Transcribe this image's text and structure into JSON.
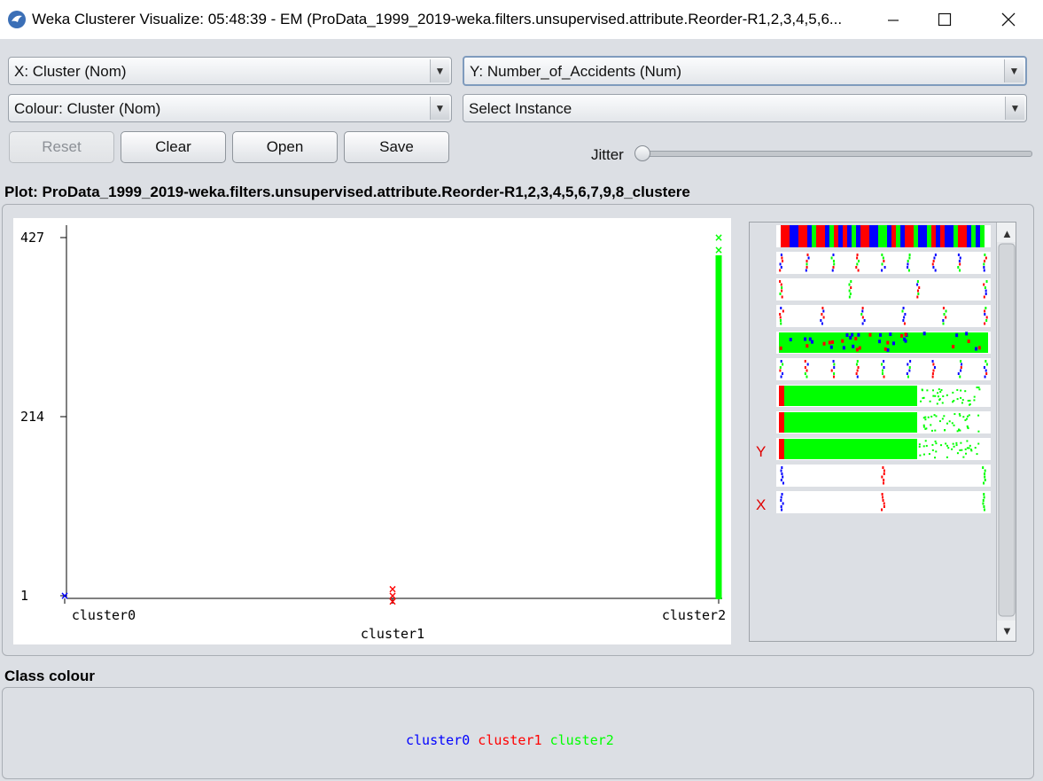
{
  "window": {
    "title": "Weka Clusterer Visualize: 05:48:39 - EM (ProData_1999_2019-weka.filters.unsupervised.attribute.Reorder-R1,2,3,4,5,6...",
    "icon": "weka-bird-icon",
    "controls": [
      "minimize-icon",
      "maximize-icon",
      "close-icon"
    ]
  },
  "controls": {
    "x_axis": "X: Cluster (Nom)",
    "y_axis": "Y: Number_of_Accidents (Num)",
    "colour": "Colour: Cluster (Nom)",
    "select_instance": "Select Instance",
    "reset": "Reset",
    "clear": "Clear",
    "open": "Open",
    "save": "Save",
    "jitter_label": "Jitter",
    "jitter_value": 0
  },
  "plot": {
    "title": "Plot: ProData_1999_2019-weka.filters.unsupervised.attribute.Reorder-R1,2,3,4,5,6,7,9,8_clustere",
    "y_ticks": [
      "427",
      "214",
      "1"
    ],
    "x_categories": [
      "cluster0",
      "cluster1",
      "cluster2"
    ]
  },
  "matrix": {
    "y_marker": "Y",
    "x_marker": "X"
  },
  "class_colour": {
    "title": "Class colour",
    "classes": [
      {
        "name": "cluster0",
        "color": "#0000ff"
      },
      {
        "name": "cluster1",
        "color": "#ff0000"
      },
      {
        "name": "cluster2",
        "color": "#00ff00"
      }
    ]
  },
  "chart_data": {
    "type": "scatter",
    "title": "",
    "xlabel": "",
    "ylabel": "",
    "categories": [
      "cluster0",
      "cluster1",
      "cluster2"
    ],
    "ylim": [
      1,
      427
    ],
    "series": [
      {
        "name": "cluster0",
        "x": "cluster0",
        "y_min": 1,
        "y_max": 1,
        "color": "#0000ff"
      },
      {
        "name": "cluster1",
        "x": "cluster1",
        "y_min": 1,
        "y_max": 9,
        "color": "#ff0000"
      },
      {
        "name": "cluster2",
        "x": "cluster2",
        "y_min": 1,
        "y_max": 427,
        "color": "#00ff00"
      }
    ]
  }
}
